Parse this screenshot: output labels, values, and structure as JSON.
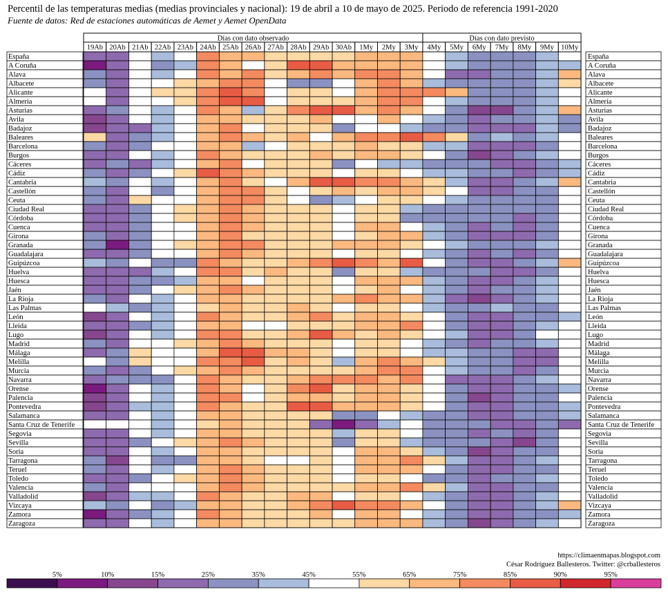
{
  "title": "Percentil de las temperaturas medias (medias provinciales y nacional): 19 de abril a 10 de mayo de 2025. Periodo de referencia 1991-2020",
  "subtitle": "Fuente de datos: Red de estaciones automáticas de Aemet y Aemet OpenData",
  "credits": {
    "url": "https://climaenmapas.blogspot.com",
    "author": "César Rodríguez Ballesteros. Twitter: @crballesteros"
  },
  "chart_data": {
    "type": "heatmap",
    "title": "Percentil de las temperaturas medias (medias provinciales y nacional): 19 de abril a 10 de mayo de 2025. Periodo de referencia 1991-2020",
    "value_unit": "percentile class index (0 = below 5%, 11 = 95% or above)",
    "groups": [
      {
        "label": "Días con dato observado",
        "from": "19Ab",
        "to": "3My"
      },
      {
        "label": "Días con dato previsto",
        "from": "4My",
        "to": "10My"
      }
    ],
    "columns": [
      "19Ab",
      "20Ab",
      "21Ab",
      "22Ab",
      "23Ab",
      "24Ab",
      "25Ab",
      "26Ab",
      "27Ab",
      "28Ab",
      "29Ab",
      "30Ab",
      "1My",
      "2My",
      "3My",
      "4My",
      "5My",
      "6My",
      "7My",
      "8My",
      "9My",
      "10My"
    ],
    "rows": [
      "España",
      "A Coruña",
      "Alava",
      "Albacete",
      "Alicante",
      "Almeria",
      "Asturias",
      "Avila",
      "Badajoz",
      "Baleares",
      "Barcelona",
      "Burgos",
      "Cáceres",
      "Cádiz",
      "Cantabria",
      "Castellón",
      "Ceuta",
      "Ciudad Real",
      "Córdoba",
      "Cuenca",
      "Girona",
      "Granada",
      "Guadalajara",
      "Guipúzcoa",
      "Huelva",
      "Huesca",
      "Jaén",
      "La Rioja",
      "Las Palmas",
      "León",
      "Lleida",
      "Lugo",
      "Madrid",
      "Málaga",
      "Melilla",
      "Murcia",
      "Navarra",
      "Orense",
      "Palencia",
      "Pontevedra",
      "Salamanca",
      "Santa Cruz de Tenerife",
      "Segovia",
      "Sevilla",
      "Soria",
      "Tarragona",
      "Teruel",
      "Toledo",
      "Valencia",
      "Valladolid",
      "Vizcaya",
      "Zamora",
      "Zaragoza"
    ],
    "values": [
      [
        3,
        3,
        6,
        5,
        6,
        9,
        8,
        8,
        7,
        7,
        7,
        7,
        8,
        8,
        8,
        6,
        5,
        4,
        4,
        4,
        5,
        6
      ],
      [
        1,
        3,
        6,
        4,
        5,
        9,
        8,
        6,
        7,
        10,
        10,
        8,
        8,
        8,
        8,
        6,
        5,
        4,
        4,
        4,
        5,
        5
      ],
      [
        4,
        3,
        6,
        5,
        6,
        9,
        8,
        9,
        7,
        8,
        9,
        8,
        9,
        9,
        8,
        6,
        3,
        3,
        4,
        4,
        5,
        8
      ],
      [
        4,
        3,
        6,
        6,
        7,
        8,
        9,
        9,
        6,
        4,
        4,
        6,
        8,
        9,
        8,
        5,
        4,
        4,
        4,
        4,
        5,
        7
      ],
      [
        6,
        3,
        6,
        7,
        7,
        9,
        10,
        9,
        6,
        7,
        7,
        6,
        8,
        9,
        9,
        9,
        8,
        4,
        4,
        4,
        5,
        6
      ],
      [
        6,
        3,
        6,
        6,
        7,
        9,
        10,
        10,
        6,
        7,
        7,
        7,
        8,
        9,
        9,
        6,
        5,
        4,
        4,
        4,
        5,
        6
      ],
      [
        3,
        4,
        6,
        5,
        6,
        9,
        8,
        5,
        7,
        9,
        10,
        10,
        8,
        9,
        8,
        6,
        4,
        2,
        2,
        4,
        5,
        8
      ],
      [
        2,
        3,
        6,
        5,
        6,
        8,
        8,
        7,
        7,
        7,
        8,
        6,
        6,
        8,
        6,
        5,
        4,
        3,
        4,
        4,
        5,
        4
      ],
      [
        2,
        3,
        3,
        5,
        6,
        8,
        9,
        6,
        7,
        7,
        7,
        4,
        6,
        6,
        5,
        4,
        4,
        3,
        3,
        3,
        5,
        4
      ],
      [
        7,
        3,
        4,
        5,
        6,
        8,
        9,
        8,
        7,
        8,
        6,
        8,
        9,
        9,
        10,
        9,
        7,
        4,
        5,
        4,
        5,
        6
      ],
      [
        4,
        3,
        4,
        6,
        6,
        8,
        8,
        5,
        6,
        7,
        7,
        7,
        8,
        7,
        7,
        5,
        5,
        3,
        3,
        3,
        4,
        6
      ],
      [
        3,
        3,
        6,
        5,
        6,
        9,
        8,
        7,
        7,
        7,
        8,
        7,
        8,
        8,
        7,
        6,
        4,
        2,
        3,
        4,
        5,
        6
      ],
      [
        3,
        4,
        3,
        5,
        6,
        8,
        9,
        6,
        7,
        7,
        7,
        4,
        6,
        5,
        5,
        4,
        4,
        4,
        3,
        3,
        4,
        5
      ],
      [
        4,
        3,
        4,
        6,
        7,
        10,
        9,
        8,
        7,
        7,
        7,
        6,
        7,
        7,
        6,
        5,
        5,
        4,
        4,
        3,
        4,
        5
      ],
      [
        5,
        4,
        6,
        5,
        6,
        8,
        9,
        7,
        6,
        8,
        10,
        10,
        9,
        9,
        8,
        7,
        5,
        3,
        3,
        4,
        5,
        8
      ],
      [
        4,
        3,
        6,
        4,
        6,
        8,
        9,
        9,
        7,
        6,
        7,
        8,
        7,
        8,
        8,
        7,
        6,
        3,
        3,
        4,
        4,
        6
      ],
      [
        4,
        3,
        7,
        6,
        6,
        8,
        9,
        9,
        7,
        6,
        4,
        5,
        6,
        7,
        7,
        6,
        5,
        4,
        4,
        4,
        4,
        6
      ],
      [
        3,
        3,
        4,
        6,
        7,
        8,
        9,
        8,
        7,
        7,
        7,
        6,
        7,
        7,
        5,
        4,
        4,
        4,
        4,
        4,
        4,
        6
      ],
      [
        3,
        3,
        4,
        6,
        7,
        8,
        9,
        8,
        7,
        7,
        7,
        6,
        7,
        7,
        4,
        4,
        4,
        4,
        4,
        3,
        4,
        6
      ],
      [
        3,
        3,
        4,
        6,
        6,
        8,
        9,
        8,
        7,
        7,
        7,
        6,
        8,
        8,
        6,
        5,
        4,
        3,
        4,
        3,
        4,
        6
      ],
      [
        4,
        3,
        4,
        6,
        6,
        8,
        9,
        7,
        7,
        7,
        7,
        6,
        7,
        8,
        8,
        5,
        4,
        3,
        3,
        3,
        4,
        6
      ],
      [
        4,
        1,
        4,
        6,
        7,
        8,
        9,
        9,
        7,
        7,
        7,
        8,
        8,
        8,
        7,
        6,
        5,
        4,
        4,
        4,
        5,
        6
      ],
      [
        3,
        3,
        4,
        6,
        6,
        8,
        9,
        8,
        7,
        7,
        7,
        6,
        7,
        7,
        6,
        5,
        4,
        3,
        4,
        3,
        4,
        6
      ],
      [
        5,
        4,
        6,
        4,
        4,
        9,
        8,
        7,
        7,
        8,
        9,
        10,
        9,
        8,
        10,
        6,
        4,
        3,
        3,
        4,
        5,
        8
      ],
      [
        3,
        3,
        3,
        5,
        6,
        9,
        9,
        7,
        8,
        7,
        7,
        4,
        7,
        7,
        5,
        4,
        4,
        4,
        3,
        3,
        4,
        6
      ],
      [
        3,
        3,
        4,
        4,
        5,
        8,
        8,
        6,
        7,
        7,
        7,
        6,
        8,
        8,
        8,
        5,
        4,
        3,
        3,
        4,
        5,
        6
      ],
      [
        3,
        3,
        4,
        6,
        7,
        8,
        9,
        8,
        7,
        7,
        7,
        6,
        7,
        8,
        6,
        5,
        4,
        3,
        4,
        4,
        5,
        6
      ],
      [
        4,
        3,
        6,
        5,
        6,
        8,
        8,
        7,
        7,
        7,
        7,
        8,
        9,
        8,
        8,
        5,
        3,
        2,
        3,
        4,
        5,
        6
      ],
      [
        6,
        5,
        4,
        5,
        6,
        7,
        8,
        7,
        7,
        8,
        7,
        6,
        7,
        7,
        6,
        5,
        4,
        4,
        5,
        4,
        4,
        6
      ],
      [
        2,
        3,
        6,
        5,
        6,
        9,
        8,
        7,
        7,
        8,
        9,
        7,
        8,
        8,
        7,
        6,
        4,
        3,
        3,
        4,
        4,
        5
      ],
      [
        3,
        3,
        4,
        5,
        6,
        8,
        8,
        6,
        6,
        7,
        7,
        7,
        8,
        8,
        9,
        6,
        4,
        3,
        3,
        4,
        5,
        6
      ],
      [
        2,
        3,
        6,
        5,
        6,
        9,
        9,
        7,
        7,
        8,
        10,
        8,
        7,
        8,
        7,
        6,
        5,
        3,
        3,
        4,
        6,
        6
      ],
      [
        4,
        3,
        6,
        6,
        7,
        8,
        9,
        8,
        7,
        7,
        7,
        6,
        7,
        7,
        6,
        5,
        4,
        3,
        4,
        4,
        5,
        6
      ],
      [
        3,
        4,
        7,
        6,
        6,
        8,
        10,
        10,
        8,
        8,
        7,
        6,
        7,
        7,
        6,
        5,
        5,
        4,
        4,
        3,
        3,
        6
      ],
      [
        6,
        4,
        7,
        6,
        6,
        9,
        9,
        10,
        7,
        8,
        7,
        5,
        8,
        9,
        8,
        7,
        5,
        4,
        4,
        3,
        3,
        6
      ],
      [
        4,
        3,
        4,
        6,
        7,
        8,
        9,
        8,
        7,
        7,
        7,
        7,
        8,
        9,
        9,
        6,
        5,
        4,
        4,
        3,
        4,
        6
      ],
      [
        3,
        4,
        4,
        4,
        6,
        9,
        8,
        7,
        7,
        8,
        9,
        9,
        9,
        8,
        9,
        6,
        3,
        3,
        3,
        4,
        5,
        6
      ],
      [
        1,
        3,
        6,
        5,
        6,
        9,
        8,
        6,
        7,
        9,
        10,
        7,
        8,
        8,
        7,
        6,
        4,
        3,
        3,
        4,
        4,
        5
      ],
      [
        2,
        3,
        6,
        5,
        6,
        9,
        9,
        6,
        7,
        8,
        8,
        7,
        8,
        8,
        7,
        6,
        4,
        2,
        3,
        4,
        4,
        6
      ],
      [
        2,
        3,
        5,
        5,
        6,
        9,
        8,
        7,
        7,
        10,
        10,
        8,
        8,
        8,
        7,
        6,
        4,
        3,
        3,
        4,
        4,
        5
      ],
      [
        3,
        3,
        6,
        5,
        6,
        8,
        8,
        7,
        7,
        7,
        7,
        4,
        4,
        6,
        5,
        4,
        4,
        3,
        3,
        4,
        4,
        5
      ],
      [
        6,
        6,
        6,
        5,
        6,
        7,
        8,
        7,
        7,
        7,
        3,
        1,
        3,
        5,
        6,
        4,
        4,
        4,
        3,
        3,
        4,
        3
      ],
      [
        3,
        3,
        6,
        5,
        6,
        8,
        8,
        7,
        7,
        7,
        7,
        5,
        7,
        7,
        6,
        4,
        4,
        3,
        4,
        3,
        4,
        6
      ],
      [
        3,
        3,
        4,
        6,
        7,
        8,
        9,
        8,
        7,
        7,
        7,
        4,
        7,
        7,
        5,
        4,
        4,
        4,
        3,
        2,
        4,
        6
      ],
      [
        3,
        3,
        6,
        5,
        6,
        8,
        8,
        7,
        7,
        7,
        7,
        6,
        8,
        8,
        7,
        5,
        4,
        2,
        3,
        4,
        4,
        6
      ],
      [
        4,
        2,
        6,
        4,
        4,
        8,
        8,
        7,
        6,
        6,
        7,
        6,
        8,
        8,
        9,
        7,
        5,
        3,
        3,
        4,
        5,
        6
      ],
      [
        4,
        3,
        6,
        5,
        6,
        8,
        9,
        8,
        7,
        7,
        7,
        6,
        8,
        8,
        8,
        6,
        4,
        3,
        3,
        4,
        4,
        6
      ],
      [
        3,
        3,
        4,
        6,
        7,
        8,
        9,
        8,
        7,
        7,
        7,
        6,
        7,
        7,
        6,
        4,
        4,
        3,
        4,
        4,
        5,
        6
      ],
      [
        4,
        3,
        6,
        6,
        6,
        8,
        9,
        8,
        7,
        7,
        7,
        7,
        8,
        8,
        9,
        7,
        5,
        3,
        3,
        4,
        4,
        6
      ],
      [
        2,
        3,
        5,
        5,
        6,
        9,
        8,
        7,
        7,
        8,
        8,
        6,
        7,
        7,
        6,
        5,
        4,
        3,
        3,
        4,
        5,
        6
      ],
      [
        5,
        4,
        6,
        4,
        5,
        8,
        8,
        7,
        7,
        8,
        9,
        10,
        9,
        9,
        8,
        6,
        4,
        3,
        3,
        4,
        5,
        8
      ],
      [
        1,
        3,
        4,
        5,
        6,
        9,
        8,
        7,
        7,
        7,
        8,
        6,
        8,
        8,
        6,
        5,
        4,
        3,
        3,
        4,
        4,
        5
      ],
      [
        3,
        3,
        6,
        5,
        6,
        8,
        8,
        7,
        7,
        7,
        7,
        7,
        8,
        8,
        8,
        5,
        4,
        2,
        3,
        4,
        5,
        6
      ]
    ],
    "legend": {
      "thresholds": [
        "5%",
        "10%",
        "15%",
        "25%",
        "35%",
        "45%",
        "55%",
        "65%",
        "75%",
        "85%",
        "90%",
        "95%"
      ],
      "colors": [
        "#3b0f4f",
        "#7b1a7f",
        "#86478f",
        "#8e6aae",
        "#8b92c2",
        "#a9bcdc",
        "#ffffff",
        "#fcd9a5",
        "#fbb87f",
        "#f48a60",
        "#e85c45",
        "#d1262d",
        "#da3e9b"
      ]
    }
  }
}
